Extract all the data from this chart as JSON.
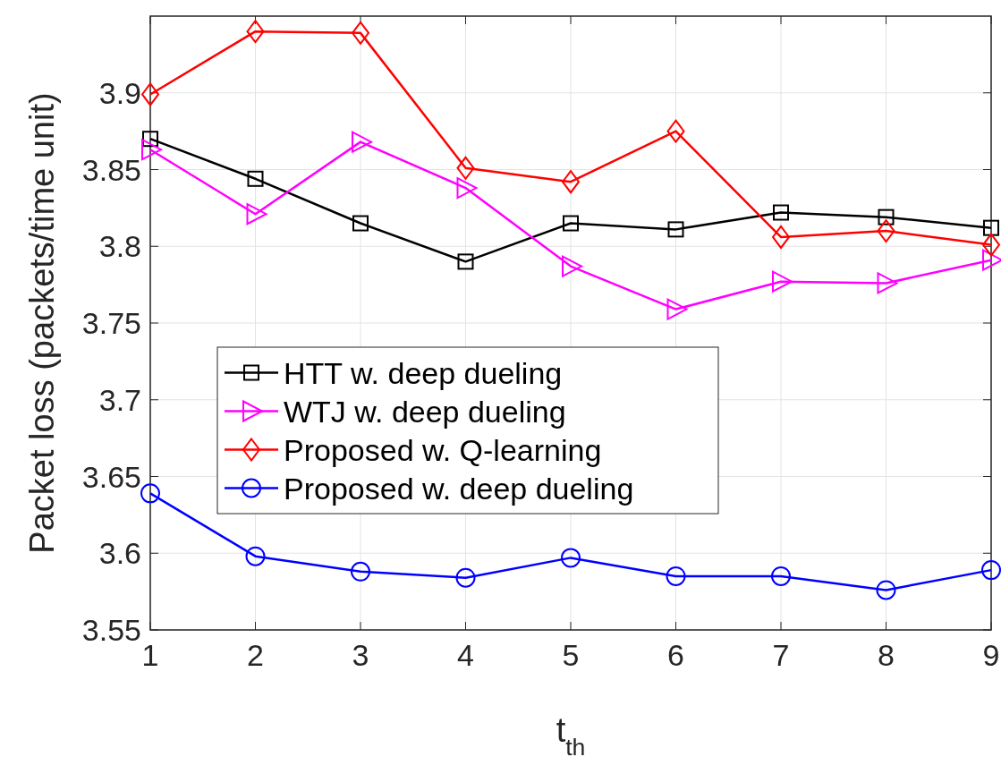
{
  "chart_data": {
    "type": "line",
    "xlabel": "t$_{th}$",
    "ylabel": "Packet loss (packets/time unit)",
    "x": [
      1,
      2,
      3,
      4,
      5,
      6,
      7,
      8,
      9
    ],
    "xlim": [
      1,
      9
    ],
    "xticks": [
      1,
      2,
      3,
      4,
      5,
      6,
      7,
      8,
      9
    ],
    "ylim": [
      3.55,
      3.95
    ],
    "yticks": [
      3.55,
      3.6,
      3.65,
      3.7,
      3.75,
      3.8,
      3.85,
      3.9
    ],
    "grid": true,
    "legend": "left",
    "series": [
      {
        "name": "HTT w. deep dueling",
        "color": "#000000",
        "marker": "square",
        "values": [
          3.87,
          3.844,
          3.815,
          3.79,
          3.815,
          3.811,
          3.822,
          3.819,
          3.812
        ]
      },
      {
        "name": "WTJ w. deep dueling",
        "color": "#ff00ff",
        "marker": "triangle",
        "values": [
          3.863,
          3.821,
          3.868,
          3.838,
          3.787,
          3.759,
          3.777,
          3.776,
          3.791
        ]
      },
      {
        "name": "Proposed w. Q-learning",
        "color": "#ff0000",
        "marker": "diamond",
        "values": [
          3.899,
          3.94,
          3.939,
          3.851,
          3.842,
          3.875,
          3.806,
          3.81,
          3.801
        ]
      },
      {
        "name": "Proposed w. deep dueling",
        "color": "#0000ff",
        "marker": "circle",
        "values": [
          3.639,
          3.598,
          3.588,
          3.584,
          3.597,
          3.585,
          3.585,
          3.576,
          3.589
        ]
      }
    ]
  }
}
